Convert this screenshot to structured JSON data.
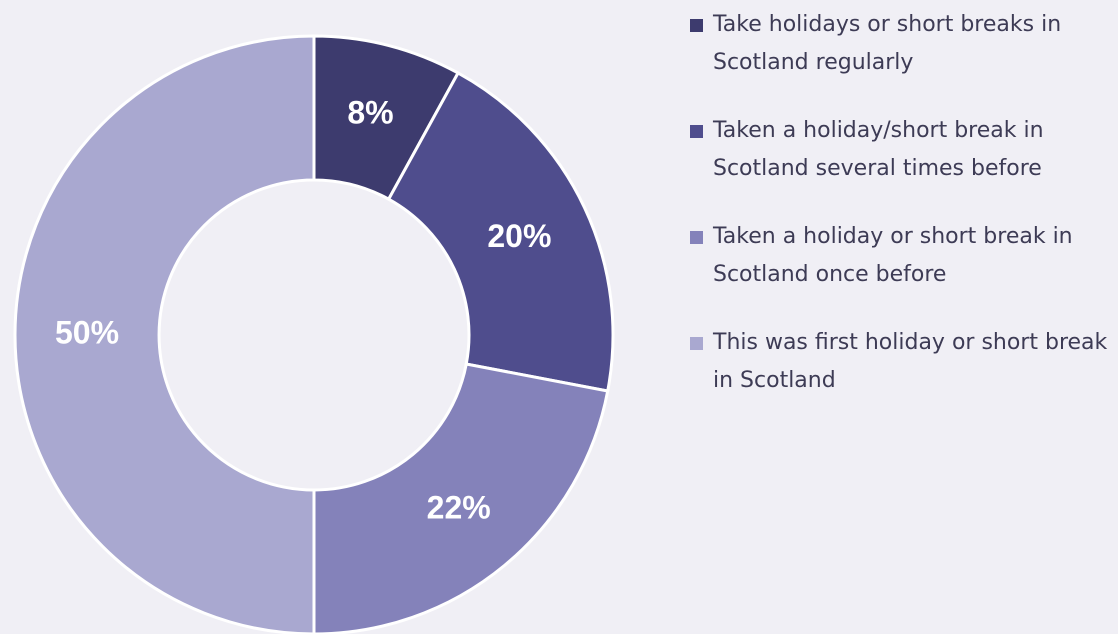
{
  "chart_data": {
    "type": "donut",
    "categories": [
      "Take holidays or short breaks in Scotland regularly",
      "Taken a holiday/short break in Scotland several times before",
      "Taken a holiday or short break in Scotland once before",
      "This was first holiday or short break in Scotland"
    ],
    "values": [
      8,
      20,
      22,
      50
    ],
    "value_labels": [
      "8%",
      "20%",
      "22%",
      "50%"
    ],
    "colors": [
      "#3d3b6e",
      "#4f4d8d",
      "#8482ba",
      "#a9a8d0"
    ],
    "legend": "right"
  }
}
